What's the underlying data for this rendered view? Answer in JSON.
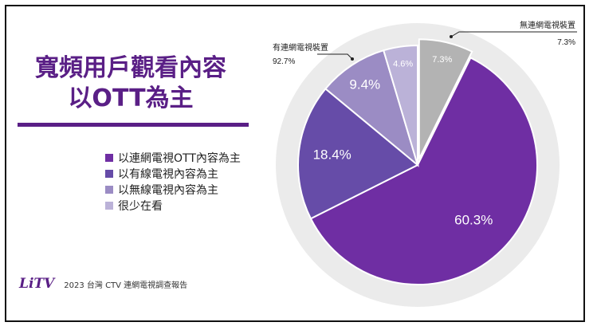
{
  "title_line1": "寬頻用戶觀看內容",
  "title_line2": "以OTT為主",
  "logo_text": "LiTV",
  "source": "2023 台灣 CTV 連網電視調查報告",
  "colors": {
    "accent": "#5a1f86",
    "outer_ring": "#ebebeb",
    "s1": "#6f2ea3",
    "s2": "#664ca8",
    "s3": "#9b8cc4",
    "s4": "#bbb2d8",
    "s5": "#b3b3b3"
  },
  "chart_data": {
    "type": "pie",
    "slices": [
      {
        "label": "以連網電視OTT內容為主",
        "value": 60.3,
        "value_label": "60.3%",
        "color": "#6f2ea3"
      },
      {
        "label": "以有線電視內容為主",
        "value": 18.4,
        "value_label": "18.4%",
        "color": "#664ca8"
      },
      {
        "label": "以無線電視內容為主",
        "value": 9.4,
        "value_label": "9.4%",
        "color": "#9b8cc4"
      },
      {
        "label": "很少在看",
        "value": 4.6,
        "value_label": "4.6%",
        "color": "#bbb2d8"
      },
      {
        "label": "無連網電視裝置",
        "value": 7.3,
        "value_label": "7.3%",
        "color": "#b3b3b3"
      }
    ],
    "legend": [
      "以連網電視OTT內容為主",
      "以有線電視內容為主",
      "以無線電視內容為主",
      "很少在看"
    ],
    "outer_ring": {
      "label": "有連網電視裝置",
      "value_label": "92.7%"
    },
    "callout": {
      "label": "無連網電視裝置",
      "value_label": "7.3%"
    }
  }
}
